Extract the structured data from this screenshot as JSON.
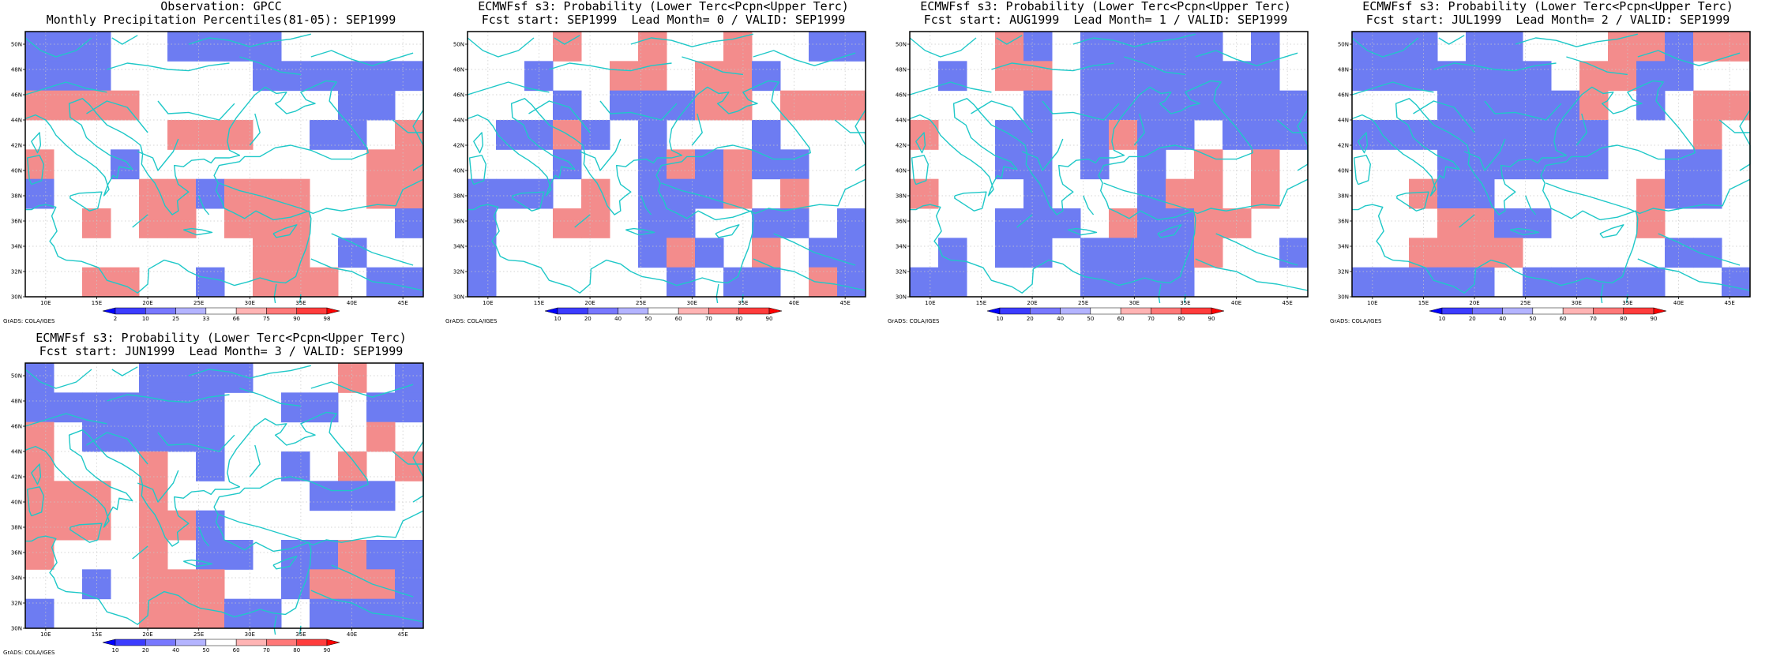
{
  "panels": [
    {
      "title_line1": "Observation: GPCC",
      "title_line2": "Monthly Precipitation Percentiles(81-05): SEP1999",
      "colorbar": {
        "ticks": [
          "2",
          "10",
          "25",
          "33",
          "66",
          "75",
          "90",
          "98"
        ]
      },
      "credit": "GrADS: COLA/IGES",
      "grid": [
        "BBBWWBBBBWWWWW",
        "BBBWWWWWBBBBBB",
        "RRRRWWWWWWWBBW",
        "WWWWWRRRWWBBWR",
        "RWWBWWWWWWWWRR",
        "BWWWRRBRRRWWRR",
        "WWRWRRWRRRWWWB",
        "WWWWWWWWRRWBWW",
        "WWRRWWBWRRRWBB"
      ]
    },
    {
      "title_line1": "ECMWFsf s3: Probability (Lower Terc<Pcpn<Upper Terc)",
      "title_line2": "Fcst start: SEP1999  Lead Month= 0 / VALID: SEP1999",
      "colorbar": {
        "ticks": [
          "10",
          "20",
          "40",
          "50",
          "60",
          "70",
          "80",
          "90"
        ]
      },
      "credit": "GrADS: COLA/IGES",
      "grid": [
        "WWWRWWRWWRWWBB",
        "WWBWWRRWRRBWWW",
        "WWWBWBBBRRWRRR",
        "WBBRBWBWWWBWWW",
        "WWWBWWBRBRBBWW",
        "BBBWRWBBBRWRWW",
        "BWWRRWBBWWBBWB",
        "BWWWWWBRBWRWBB",
        "BWWWWWWBWBBWRB"
      ]
    },
    {
      "title_line1": "ECMWFsf s3: Probability (Lower Terc<Pcpn<Upper Terc)",
      "title_line2": "Fcst start: AUG1999  Lead Month= 1 / VALID: SEP1999",
      "colorbar": {
        "ticks": [
          "10",
          "20",
          "40",
          "50",
          "60",
          "70",
          "80",
          "90"
        ]
      },
      "credit": "GrADS: COLA/IGES",
      "grid": [
        "WWWRBWBBBBBWBW",
        "WBWRRWBBBBBBBW",
        "WWWWBWBBBBBBBB",
        "RWWBBWBRBBWBBB",
        "WWWBBWBWBWRWRW",
        "RWWWBWWWBRRWRW",
        "WWWBBBWRBBRRWW",
        "WBWBBWBBBBRWWB",
        "BBWWWWBBBBWWWW"
      ]
    },
    {
      "title_line1": "ECMWFsf s3: Probability (Lower Terc<Pcpn<Upper Terc)",
      "title_line2": "Fcst start: JUL1999  Lead Month= 2 / VALID: SEP1999",
      "colorbar": {
        "ticks": [
          "10",
          "20",
          "40",
          "50",
          "60",
          "70",
          "80",
          "90"
        ]
      },
      "credit": "GrADS: COLA/IGES",
      "grid": [
        "BBBWBBWWWRRBRR",
        "BBBBBBBWRRBBWW",
        "WWWBBBBBRWBWRR",
        "BBBBBBBBBWWWRW",
        "WWWBBBBBBWWBBW",
        "WWRBBWWWWWRBBW",
        "WWWRRBBWWWRWWW",
        "WWRRRRWWWWWBBW",
        "BBBBBWBBBBBWWB"
      ]
    },
    {
      "title_line1": "ECMWFsf s3: Probability (Lower Terc<Pcpn<Upper Terc)",
      "title_line2": "Fcst start: JUN1999  Lead Month= 3 / VALID: SEP1999",
      "colorbar": {
        "ticks": [
          "10",
          "20",
          "40",
          "50",
          "60",
          "70",
          "80",
          "90"
        ]
      },
      "credit": "GrADS: COLA/IGES",
      "grid": [
        "BWWWBBBBWWWRWB",
        "BBBBBBBWWBBWBB",
        "RWBBBBBWWWWWRW",
        "RWWWRWBWWBWRWR",
        "RRRWRWWWWWBBBW",
        "RRRWRRBWWWWWWW",
        "RWWWRWBBWBBRBB",
        "WWBWRRRWWBRRRB",
        "BWWWRRRBBWBBBB"
      ]
    }
  ]
}
